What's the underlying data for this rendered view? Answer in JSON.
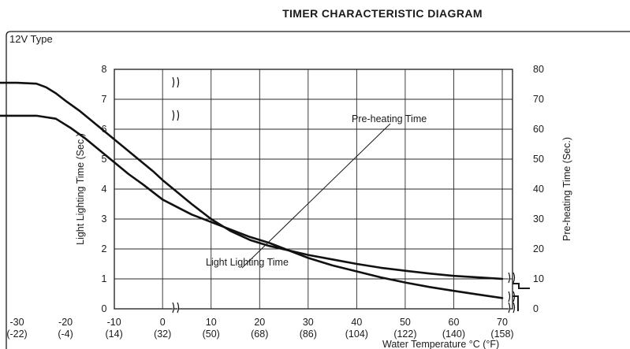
{
  "chart_data": {
    "type": "line",
    "title": "TIMER CHARACTERISTIC DIAGRAM",
    "subtitle": "12V Type",
    "xlabel": "Water Temperature °C (°F)",
    "ylabel": "Light Lighting Time (Sec.)",
    "y2label": "Pre-heating Time (Sec.)",
    "x_ticks": [
      {
        "c": "-30",
        "f": "(-22)"
      },
      {
        "c": "-20",
        "f": "(-4)"
      },
      {
        "c": "-10",
        "f": "(14)"
      },
      {
        "c": "0",
        "f": "(32)"
      },
      {
        "c": "10",
        "f": "(50)"
      },
      {
        "c": "20",
        "f": "(68)"
      },
      {
        "c": "30",
        "f": "(86)"
      },
      {
        "c": "40",
        "f": "(104)"
      },
      {
        "c": "50",
        "f": "(122)"
      },
      {
        "c": "60",
        "f": "(140)"
      },
      {
        "c": "70",
        "f": "(158)"
      }
    ],
    "y_ticks": [
      "0",
      "1",
      "2",
      "3",
      "4",
      "5",
      "6",
      "7",
      "8"
    ],
    "y2_ticks": [
      "0",
      "10",
      "20",
      "30",
      "40",
      "50",
      "60",
      "70",
      "80"
    ],
    "xlim": [
      -50,
      70
    ],
    "ylim": [
      0,
      8
    ],
    "y2lim": [
      0,
      80
    ],
    "grid": true,
    "series": [
      {
        "name": "Light Lighting Time",
        "axis": "left",
        "x": [
          -40,
          -26,
          -22,
          -19,
          -16,
          -13,
          -10,
          -7,
          -4,
          -2,
          0,
          3,
          6,
          10,
          14,
          18,
          22,
          26,
          30,
          35,
          40,
          45,
          50,
          55,
          60,
          65,
          70
        ],
        "y": [
          6.45,
          6.45,
          6.35,
          6.05,
          5.7,
          5.3,
          4.9,
          4.5,
          4.15,
          3.9,
          3.65,
          3.4,
          3.15,
          2.9,
          2.65,
          2.4,
          2.2,
          1.95,
          1.7,
          1.45,
          1.25,
          1.05,
          0.88,
          0.73,
          0.6,
          0.48,
          0.36
        ]
      },
      {
        "name": "Pre-heating Time",
        "axis": "right",
        "x": [
          -40,
          -30,
          -26,
          -24,
          -22,
          -20,
          -17,
          -14,
          -11,
          -8,
          -5,
          -2,
          0,
          3,
          6,
          10,
          14,
          18,
          22,
          26,
          30,
          35,
          40,
          45,
          50,
          55,
          60,
          65,
          70
        ],
        "y": [
          75.5,
          75.5,
          75.2,
          74,
          72,
          69.5,
          66,
          62,
          58,
          54,
          50,
          46,
          43,
          39,
          35,
          30,
          26,
          23,
          21,
          19.5,
          18,
          16.5,
          15,
          13.7,
          12.7,
          11.8,
          11,
          10.5,
          10
        ]
      }
    ],
    "annotations": {
      "preheat_label": "Pre-heating Time",
      "light_label": "Light Lighting Time"
    }
  }
}
